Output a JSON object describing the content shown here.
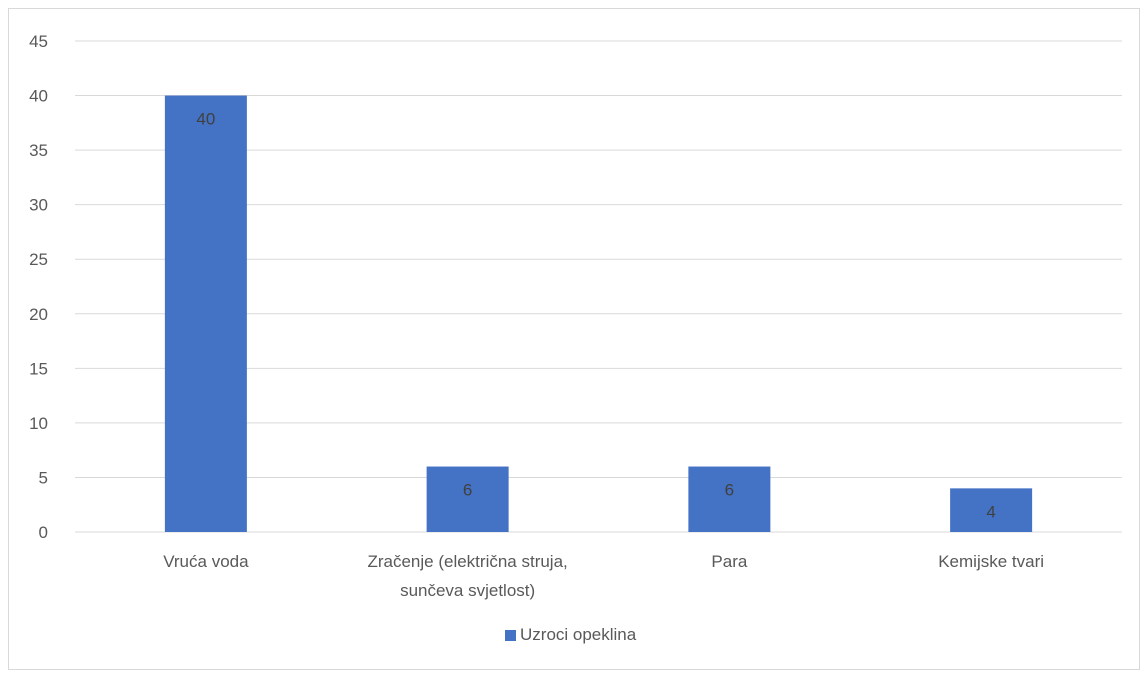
{
  "chart_data": {
    "type": "bar",
    "categories": [
      [
        "Vruća voda"
      ],
      [
        "Zračenje (električna struja,",
        "sunčeva svjetlost)"
      ],
      [
        "Para"
      ],
      [
        "Kemijske tvari"
      ]
    ],
    "series": [
      {
        "name": "Uzroci opeklina",
        "values": [
          40,
          6,
          6,
          4
        ],
        "color": "#4472c4"
      }
    ],
    "ylim": [
      0,
      45
    ],
    "yticks": [
      0,
      5,
      10,
      15,
      20,
      25,
      30,
      35,
      40,
      45
    ],
    "data_labels": true,
    "grid": true,
    "legend_position": "bottom"
  }
}
